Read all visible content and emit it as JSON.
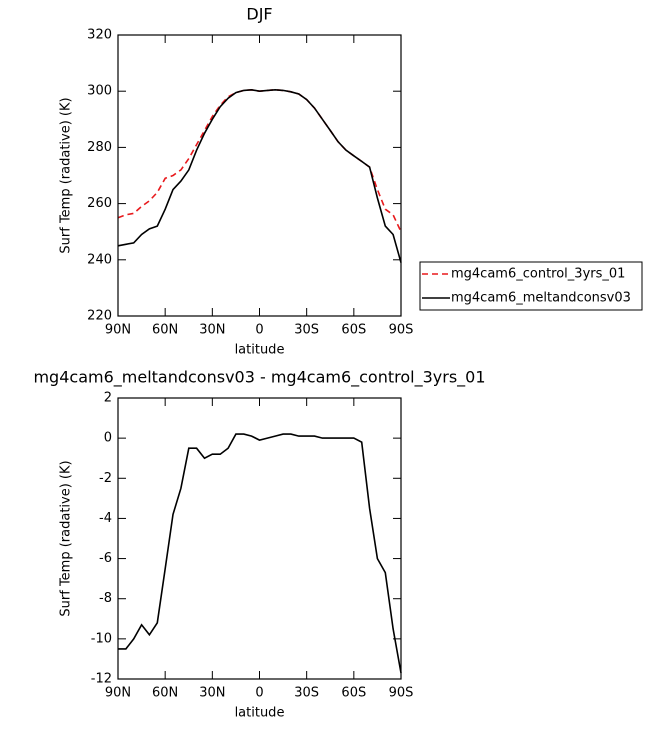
{
  "chart_data": [
    {
      "type": "line",
      "title": "DJF",
      "xlabel": "latitude",
      "ylabel": "Surf Temp (radative) (K)",
      "x": [
        90,
        85,
        80,
        75,
        70,
        65,
        60,
        55,
        50,
        45,
        40,
        35,
        30,
        25,
        20,
        15,
        10,
        5,
        0,
        -5,
        -10,
        -15,
        -20,
        -25,
        -30,
        -35,
        -40,
        -45,
        -50,
        -55,
        -60,
        -65,
        -70,
        -75,
        -80,
        -85,
        -90
      ],
      "xlim": [
        90,
        -90
      ],
      "xticks": [
        {
          "value": 90,
          "label": "90N"
        },
        {
          "value": 60,
          "label": "60N"
        },
        {
          "value": 30,
          "label": "30N"
        },
        0,
        {
          "value": -30,
          "label": "30S"
        },
        {
          "value": -60,
          "label": "60S"
        },
        {
          "value": -90,
          "label": "90S"
        }
      ],
      "ylim": [
        220,
        320
      ],
      "yticks": [
        220,
        240,
        260,
        280,
        300,
        320
      ],
      "legend": "right",
      "series": [
        {
          "name": "mg4cam6_control_3yrs_01",
          "color": "#e8191c",
          "line_style": "dashed",
          "values": [
            255,
            256,
            256.5,
            259,
            261,
            264,
            269,
            270,
            272,
            276,
            281,
            286,
            291,
            295,
            298,
            299.5,
            300.3,
            300.5,
            300,
            300.3,
            300.5,
            300.3,
            299.8,
            299,
            297,
            294,
            290,
            286,
            282,
            279,
            277,
            275,
            273,
            265,
            258,
            256,
            250
          ]
        },
        {
          "name": "mg4cam6_meltandconsv03",
          "color": "#000000",
          "line_style": "solid",
          "values": [
            245,
            245.5,
            246,
            249,
            251,
            252,
            258,
            265,
            268,
            272,
            279,
            285,
            290,
            294.5,
            297.5,
            299.5,
            300.3,
            300.5,
            300,
            300.3,
            300.5,
            300.3,
            299.8,
            299,
            297,
            294,
            290,
            286,
            282,
            279,
            277,
            275,
            273,
            262,
            252,
            249,
            239
          ]
        }
      ]
    },
    {
      "type": "line",
      "title": "mg4cam6_meltandconsv03 - mg4cam6_control_3yrs_01",
      "xlabel": "latitude",
      "ylabel": "Surf Temp (radative) (K)",
      "x": [
        90,
        85,
        80,
        75,
        70,
        65,
        60,
        55,
        50,
        45,
        40,
        35,
        30,
        25,
        20,
        15,
        10,
        5,
        0,
        -5,
        -10,
        -15,
        -20,
        -25,
        -30,
        -35,
        -40,
        -45,
        -50,
        -55,
        -60,
        -65,
        -70,
        -75,
        -80,
        -85,
        -90
      ],
      "xlim": [
        90,
        -90
      ],
      "xticks": [
        {
          "value": 90,
          "label": "90N"
        },
        {
          "value": 60,
          "label": "60N"
        },
        {
          "value": 30,
          "label": "30N"
        },
        0,
        {
          "value": -30,
          "label": "30S"
        },
        {
          "value": -60,
          "label": "60S"
        },
        {
          "value": -90,
          "label": "90S"
        }
      ],
      "ylim": [
        -12,
        2
      ],
      "yticks": [
        -12,
        -10,
        -8,
        -6,
        -4,
        -2,
        0,
        2
      ],
      "series": [
        {
          "color": "#000000",
          "line_style": "solid",
          "values": [
            -10.5,
            -10.5,
            -10,
            -9.3,
            -9.8,
            -9.2,
            -6.5,
            -3.8,
            -2.5,
            -0.5,
            -0.5,
            -1,
            -0.8,
            -0.8,
            -0.5,
            0.2,
            0.2,
            0.1,
            -0.1,
            0,
            0.1,
            0.2,
            0.2,
            0.1,
            0.1,
            0.1,
            0,
            0,
            0,
            0,
            0,
            -0.2,
            -3.5,
            -6,
            -6.7,
            -9.5,
            -11.7
          ]
        }
      ]
    }
  ]
}
